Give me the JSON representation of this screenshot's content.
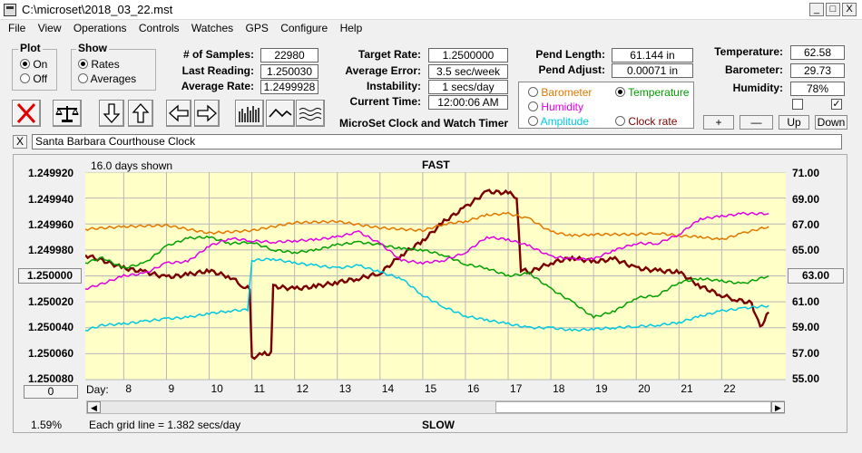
{
  "window": {
    "title": "C:\\microset\\2018_03_22.mst",
    "min": "_",
    "max": "□",
    "close": "X"
  },
  "menu": [
    "File",
    "View",
    "Operations",
    "Controls",
    "Watches",
    "GPS",
    "Configure",
    "Help"
  ],
  "plot_group": {
    "label": "Plot",
    "on": "On",
    "off": "Off",
    "selected": "On"
  },
  "show_group": {
    "label": "Show",
    "rates": "Rates",
    "averages": "Averages",
    "selected": "Rates"
  },
  "stats": {
    "samples_label": "# of Samples:",
    "samples": "22980",
    "last_label": "Last Reading:",
    "last": "1.250030",
    "avg_label": "Average Rate:",
    "avg": "1.2499928"
  },
  "target": {
    "target_label": "Target Rate:",
    "target": "1.2500000",
    "err_label": "Average Error:",
    "err": "3.5 sec/week",
    "inst_label": "Instability:",
    "inst": "1 secs/day",
    "time_label": "Current Time:",
    "time": "12:00:06 AM"
  },
  "app_caption": "MicroSet Clock and Watch Timer",
  "pend": {
    "len_label": "Pend Length:",
    "len": "61.144 in",
    "adj_label": "Pend Adjust:",
    "adj": "0.00071 in"
  },
  "sensor_select": {
    "options": [
      {
        "label": "Barometer",
        "color": "#e07800",
        "selected": false
      },
      {
        "label": "Temperature",
        "color": "#00a000",
        "selected": true
      },
      {
        "label": "Humidity",
        "color": "#e000e0",
        "selected": false
      },
      {
        "label": "Amplitude",
        "color": "#00c8e0",
        "selected": false
      },
      {
        "label": "Clock rate",
        "color": "#800000",
        "selected": false
      }
    ]
  },
  "env": {
    "temp_label": "Temperature:",
    "temp": "62.58",
    "baro_label": "Barometer:",
    "baro": "29.73",
    "hum_label": "Humidity:",
    "hum": "78%",
    "check1": "",
    "check2": "✓",
    "plus": "+",
    "minus": "—",
    "up": "Up",
    "down": "Down"
  },
  "watch": {
    "close": "X",
    "name": "Santa Barbara Courthouse Clock"
  },
  "plot": {
    "days_shown": "16.0 days shown",
    "fast": "FAST",
    "slow": "SLOW",
    "grid_note": "Each grid line = 1.382 secs/day",
    "pct": "1.59%",
    "left_button": "1.250000",
    "right_button": "63.00",
    "bottom_left_button": "0",
    "day_label": "Day:",
    "days": [
      "8",
      "9",
      "10",
      "11",
      "12",
      "13",
      "14",
      "15",
      "16",
      "17",
      "18",
      "19",
      "20",
      "21",
      "22"
    ],
    "left_ticks": [
      "1.249920",
      "1.249940",
      "1.249960",
      "1.249980",
      "1.250000",
      "1.250020",
      "1.250040",
      "1.250060",
      "1.250080"
    ],
    "right_ticks": [
      "71.00",
      "69.00",
      "67.00",
      "65.00",
      "63.00",
      "61.00",
      "59.00",
      "57.00",
      "55.00"
    ]
  },
  "chart_data": {
    "type": "line",
    "xlabel": "Day:",
    "xlim": [
      7.1,
      23.5
    ],
    "left_axis": {
      "ylim": [
        1.24992,
        1.25008
      ],
      "reversed": true
    },
    "right_axis": {
      "ylim": [
        55,
        71
      ]
    },
    "series": [
      {
        "name": "Clock rate",
        "axis": "left",
        "color": "#7a0000",
        "x": [
          7.1,
          7.5,
          8.0,
          8.5,
          9.0,
          9.5,
          10.0,
          10.5,
          10.8,
          10.95,
          11.0,
          11.3,
          11.45,
          11.5,
          12.0,
          12.5,
          13.0,
          13.5,
          14.0,
          14.5,
          15.0,
          15.5,
          16.0,
          16.5,
          17.0,
          17.2,
          17.3,
          17.5,
          18.0,
          18.5,
          19.0,
          19.5,
          20.0,
          20.5,
          21.0,
          21.5,
          22.0,
          22.3,
          22.7,
          22.9,
          23.1
        ],
        "y": [
          1.249984,
          1.249988,
          1.249994,
          1.249997,
          1.250001,
          1.249999,
          1.249996,
          1.250001,
          1.250008,
          1.25001,
          1.250063,
          1.25006,
          1.25006,
          1.250008,
          1.25001,
          1.250008,
          1.250005,
          1.250002,
          1.249998,
          1.249984,
          1.249973,
          1.249958,
          1.249947,
          1.249935,
          1.249936,
          1.249939,
          1.249995,
          1.249997,
          1.24999,
          1.249986,
          1.249989,
          1.249987,
          1.249994,
          1.249996,
          1.249997,
          1.250008,
          1.250015,
          1.250018,
          1.250021,
          1.25004,
          1.250028
        ]
      },
      {
        "name": "Barometer",
        "axis": "right",
        "color": "#e07800",
        "x": [
          7.1,
          8,
          9,
          10,
          11,
          12,
          13,
          14,
          15,
          15.5,
          16,
          16.5,
          17,
          17.5,
          18,
          18.5,
          19,
          20,
          20.5,
          21,
          21.5,
          22,
          22.5,
          23.1
        ],
        "y": [
          66.6,
          66.8,
          66.9,
          66.3,
          66.5,
          67.1,
          67.2,
          66.7,
          66.5,
          67.0,
          67.2,
          67.7,
          67.8,
          67.4,
          66.4,
          66.1,
          66.2,
          66.2,
          66.3,
          66.1,
          66.0,
          65.8,
          66.3,
          66.8
        ]
      },
      {
        "name": "Temperature",
        "axis": "right",
        "color": "#00a000",
        "x": [
          7.1,
          7.5,
          8,
          8.5,
          9,
          9.5,
          10,
          10.5,
          11,
          11.5,
          12,
          12.5,
          13,
          13.5,
          14,
          14.5,
          15,
          15.5,
          16,
          16.5,
          17,
          17.5,
          18,
          18.5,
          19,
          19.5,
          20,
          20.5,
          21,
          21.5,
          22,
          22.5,
          23.1
        ],
        "y": [
          64.0,
          64.4,
          63.6,
          64.0,
          65.3,
          65.9,
          66.0,
          65.5,
          65.6,
          65.0,
          64.8,
          65.0,
          65.4,
          65.6,
          65.4,
          65.1,
          65.0,
          64.6,
          63.9,
          63.6,
          63.0,
          63.2,
          62.0,
          61.0,
          59.8,
          60.3,
          61.3,
          61.5,
          62.5,
          62.8,
          62.6,
          62.4,
          63.0
        ]
      },
      {
        "name": "Humidity",
        "axis": "right",
        "color": "#e000e0",
        "x": [
          7.1,
          7.5,
          8,
          8.5,
          9,
          9.5,
          10,
          10.5,
          11,
          11.5,
          12,
          12.5,
          13,
          13.5,
          14,
          14.5,
          15,
          15.5,
          16,
          16.5,
          17,
          17.5,
          18,
          18.5,
          19,
          19.5,
          20,
          20.5,
          21,
          21.5,
          22,
          22.5,
          23.1
        ],
        "y": [
          62.0,
          62.4,
          63.0,
          63.2,
          64.0,
          64.1,
          65.3,
          65.9,
          65.7,
          65.6,
          65.7,
          65.8,
          66.0,
          66.4,
          65.5,
          64.2,
          64.0,
          64.2,
          64.8,
          66.0,
          65.8,
          65.3,
          64.5,
          64.3,
          64.3,
          65.0,
          65.5,
          65.5,
          66.2,
          67.4,
          67.6,
          67.8,
          67.8
        ]
      },
      {
        "name": "Amplitude",
        "axis": "right",
        "color": "#00c8e0",
        "x": [
          7.1,
          7.5,
          8,
          8.5,
          9,
          9.5,
          10,
          10.5,
          10.9,
          11.0,
          11.5,
          12,
          12.5,
          13,
          13.5,
          14,
          14.5,
          15,
          15.5,
          16,
          16.5,
          17,
          17.5,
          18,
          18.5,
          19,
          19.5,
          20,
          20.5,
          21,
          21.5,
          22,
          22.5,
          23.1
        ],
        "y": [
          58.8,
          59.2,
          59.3,
          59.5,
          59.7,
          59.8,
          60.1,
          60.3,
          60.4,
          64.2,
          64.3,
          64.0,
          63.8,
          63.6,
          63.8,
          63.3,
          62.8,
          61.5,
          60.6,
          59.9,
          59.6,
          59.3,
          59.0,
          59.0,
          58.8,
          58.9,
          59.0,
          59.1,
          59.2,
          59.4,
          59.9,
          60.3,
          60.5,
          60.7
        ]
      }
    ]
  }
}
